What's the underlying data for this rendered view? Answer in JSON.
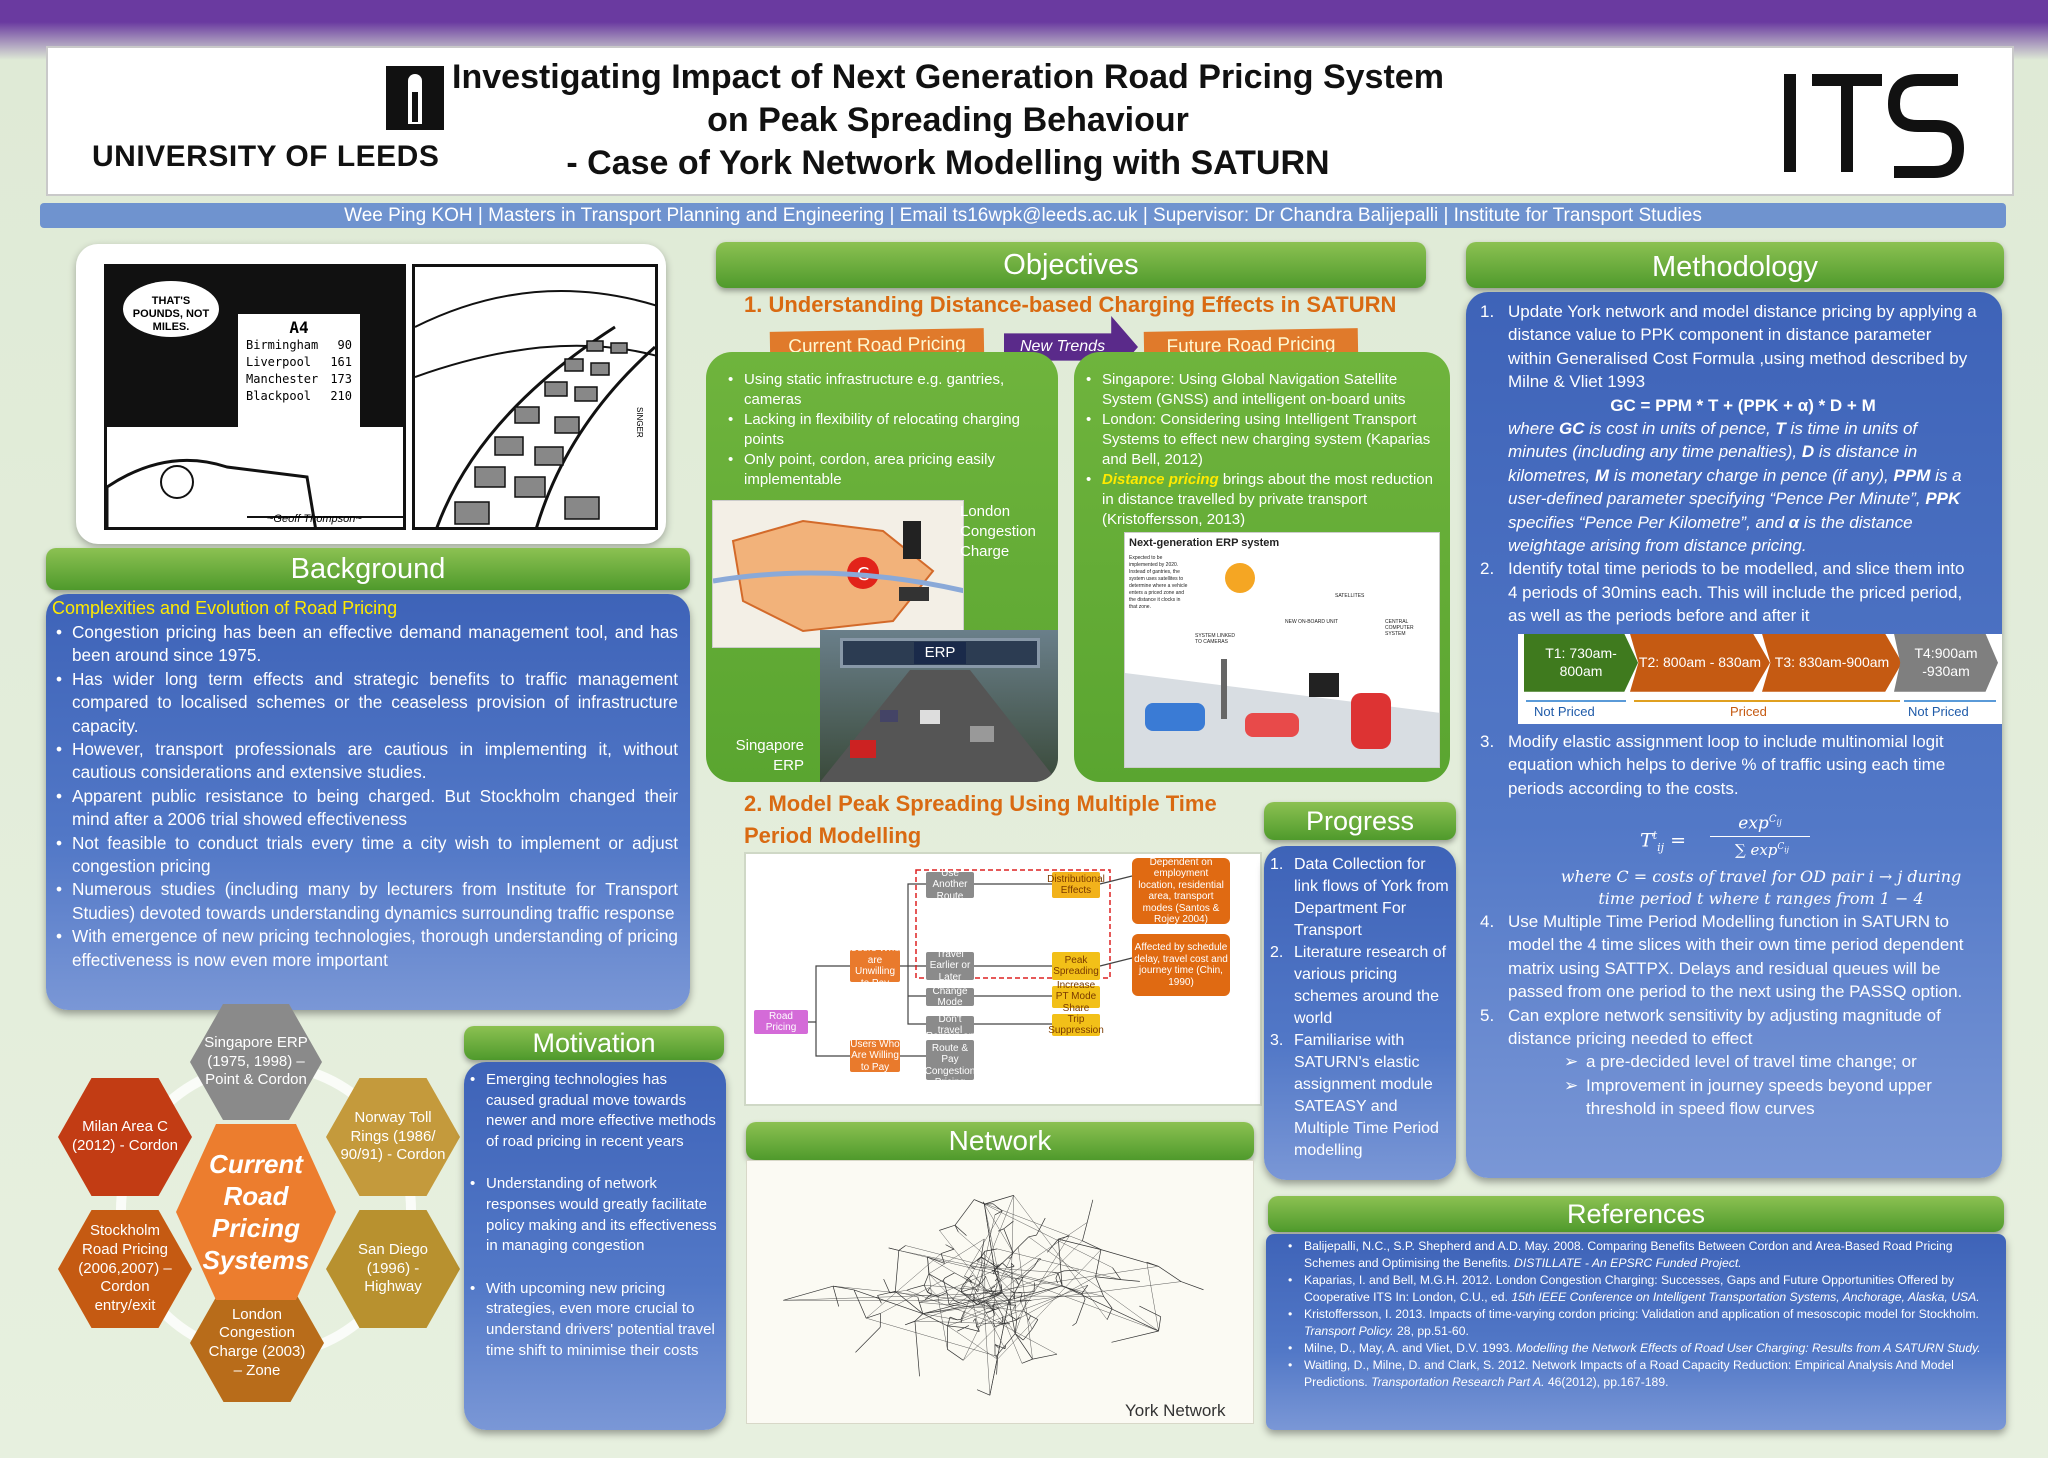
{
  "header": {
    "title_line1": "Investigating Impact of Next Generation Road Pricing System",
    "title_line2": "on Peak Spreading Behaviour",
    "title_line3": "- Case of York Network Modelling with SATURN",
    "university": "UNIVERSITY OF LEEDS",
    "its_logo": "ITS"
  },
  "author_line": "Wee Ping KOH | Masters in Transport Planning and Engineering | Email ts16wpk@leeds.ac.uk | Supervisor: Dr Chandra Balijepalli | Institute for Transport Studies",
  "cartoon": {
    "speech": "THAT'S POUNDS, NOT MILES.",
    "sign_title": "A4",
    "sign_rows": [
      [
        "Birmingham",
        "90"
      ],
      [
        "Liverpool",
        "161"
      ],
      [
        "Manchester",
        "173"
      ],
      [
        "Blackpool",
        "210"
      ]
    ],
    "signature": "~Geoff Thompson~",
    "artist": "SINGER"
  },
  "background": {
    "title": "Background",
    "subtitle": "Complexities and Evolution of Road Pricing",
    "bullets": [
      "Congestion pricing has been an effective demand management tool, and has been around since 1975.",
      "Has wider long term effects and strategic benefits to traffic management compared to localised schemes or the ceaseless provision of infrastructure capacity.",
      "However, transport professionals are cautious in implementing it, without cautious considerations and extensive studies.",
      "Apparent public resistance to being charged.  But Stockholm changed their mind after a 2006 trial showed effectiveness",
      "Not feasible to conduct trials every time a city wish to implement or adjust congestion pricing",
      "Numerous studies (including many by lecturers from Institute for Transport Studies) devoted towards understanding dynamics surrounding traffic response",
      "With emergence of new pricing technologies, thorough understanding of pricing effectiveness is now even more important"
    ]
  },
  "hexagons": {
    "center": "Current Road Pricing Systems",
    "items": [
      "Singapore ERP (1975, 1998) – Point & Cordon",
      "Norway Toll Rings (1986/ 90/91) - Cordon",
      "San Diego (1996) - Highway",
      "London Congestion Charge (2003) – Zone",
      "Stockholm Road Pricing (2006,2007) – Cordon entry/exit",
      "Milan Area C (2012) - Cordon"
    ]
  },
  "motivation": {
    "title": "Motivation",
    "bullets": [
      "Emerging technologies has caused gradual move towards newer and more effective methods of road pricing in recent years",
      "Understanding of network responses would greatly facilitate policy making and its effectiveness in managing congestion",
      "With upcoming new pricing strategies, even more crucial to understand drivers' potential travel time shift to minimise their costs"
    ]
  },
  "objectives": {
    "title": "Objectives",
    "heading1": "1. Understanding Distance-based Charging Effects in SATURN",
    "banner_current": "Current Road Pricing Systems",
    "banner_new": "New Trends",
    "banner_future": "Future Road Pricing Systems",
    "current_bullets": [
      "Using static infrastructure e.g. gantries, cameras",
      "Lacking in flexibility of relocating charging points",
      "Only point, cordon, area pricing easily implementable"
    ],
    "future_b1": "Singapore: Using Global Navigation Satellite System (GNSS) and intelligent on-board units",
    "future_b2": "London: Considering using Intelligent Transport Systems to effect new charging system  (Kaparias and Bell, 2012)",
    "future_b3_em": "Distance pricing",
    "future_b3_rest": " brings about the most reduction in distance travelled by private transport (Kristoffersson, 2013)",
    "london_caption": "London Congestion Charge",
    "singapore_caption": "Singapore ERP",
    "erp_sign": "ERP",
    "erp_title": "Next-generation ERP system",
    "erp_note": "Expected to be implemented by 2020. Instead of gantries, the system uses satellites to determine where a vehicle enters a priced zone and the distance it clocks in that zone.",
    "erp_labels": [
      "SATELLITES",
      "SYSTEM LINKED TO CAMERAS",
      "NEW ON-BOARD UNIT",
      "CENTRAL COMPUTER SYSTEM"
    ],
    "heading2": "2. Model Peak Spreading Using Multiple Time Period Modelling",
    "flow": {
      "root": "Road Pricing",
      "unwilling": "Users Who are Unwilling to Pay",
      "willing": "Users Who Are Willing to Pay",
      "route": "Use Another Route",
      "time": "Travel Earlier or Later",
      "mode": "Change Mode",
      "notravel": "Don't travel",
      "remain": "Remain on Route & Pay Congestion Pricing",
      "dist": "Distributional Effects",
      "peak": "Peak Spreading",
      "pt": "Increase PT Mode Share",
      "supp": "Trip Suppression",
      "dep": "Dependent on employment location, residential area, transport modes (Santos & Rojey 2004)",
      "aff": "Affected by schedule delay, travel cost and journey time (Chin, 1990)"
    }
  },
  "progress": {
    "title": "Progress",
    "items": [
      "Data Collection for link flows of York from Department For Transport",
      "Literature research of various pricing schemes around the world",
      "Familiarise with SATURN's elastic assignment module SATEASY and Multiple Time Period modelling"
    ]
  },
  "network": {
    "title": "Network",
    "caption": "York Network"
  },
  "methodology": {
    "title": "Methodology",
    "step1": "Update York network and model distance pricing by applying a distance value to PPK component in distance parameter within Generalised Cost Formula ,using method described by Milne & Vliet 1993",
    "formula": "GC = PPM * T + (PPK + α) * D + M",
    "where_parts": [
      "where ",
      "GC",
      " is cost in units of pence, ",
      "T",
      " is time in units of minutes (including any time penalties), ",
      "D",
      " is distance in kilometres, ",
      "M",
      " is monetary charge in pence (if any), ",
      "PPM",
      " is a user-defined parameter specifying “Pence Per Minute”, ",
      "PPK",
      " specifies “Pence Per Kilometre”, and ",
      "α",
      " is the distance weightage arising from distance pricing."
    ],
    "step2": "Identify total time periods to be modelled, and slice them into 4 periods of 30mins each. This will include the priced period, as well as the periods before and after it",
    "timeline": [
      "T1: 730am-800am",
      "T2: 800am - 830am",
      "T3: 830am-900am",
      "T4:900am -930am"
    ],
    "timeline_labels": [
      "Not Priced",
      "Priced",
      "Not Priced"
    ],
    "step3": "Modify elastic assignment loop to include multinomial logit equation which helps to derive % of traffic using each time periods according to the costs.",
    "eq_lhs": "T",
    "eq_num": "exp",
    "eq_den": "∑ exp",
    "eq_where": "where C = costs of travel for OD pair i → j during time period t where t ranges from 1 − 4",
    "step4": "Use Multiple Time Period Modelling function in SATURN to model the 4 time slices with their own time period dependent matrix using SATTPX. Delays and residual queues will be passed from one period to the next using the PASSQ option.",
    "step5": "Can explore network sensitivity by adjusting magnitude of distance pricing needed to effect",
    "sub": [
      "a  pre-decided level of travel time change; or",
      "Improvement in journey speeds beyond upper threshold in speed flow curves"
    ]
  },
  "references": {
    "title": "References",
    "items": [
      {
        "a": "Balijepalli, N.C., S.P. Shepherd and A.D. May. 2008. Comparing Benefits Between Cordon and Area-Based Road Pricing Schemes and Optimising the Benefits. ",
        "i": "DISTILLATE - An EPSRC Funded Project.",
        "z": ""
      },
      {
        "a": "Kaparias, I. and Bell, M.G.H. 2012. London Congestion Charging: Successes, Gaps and Future Opportunities Offered by Cooperative ITS In: London, C.U., ed. ",
        "i": "15th IEEE Conference on Intelligent Transportation Systems, Anchorage, Alaska, USA.",
        "z": ""
      },
      {
        "a": "Kristoffersson, I. 2013. Impacts of time-varying cordon pricing: Validation and application of mesoscopic model for Stockholm. ",
        "i": "Transport Policy.",
        "z": " 28, pp.51-60."
      },
      {
        "a": "Milne, D., May, A. and Vliet, D.V. 1993. ",
        "i": "Modelling the Network Effects of Road User Charging: Results from A SATURN Study.",
        "z": ""
      },
      {
        "a": "Waitling, D., Milne, D. and Clark, S. 2012. Network Impacts of a Road Capacity Reduction: Empirical Analysis And Model Predictions. ",
        "i": "Transportation Research Part A.",
        "z": " 46(2012), pp.167-189."
      }
    ]
  },
  "colors": {
    "green": "#5aa530",
    "blue": "#3e63b8",
    "orange": "#d96a12",
    "purple": "#6a3aa0"
  }
}
